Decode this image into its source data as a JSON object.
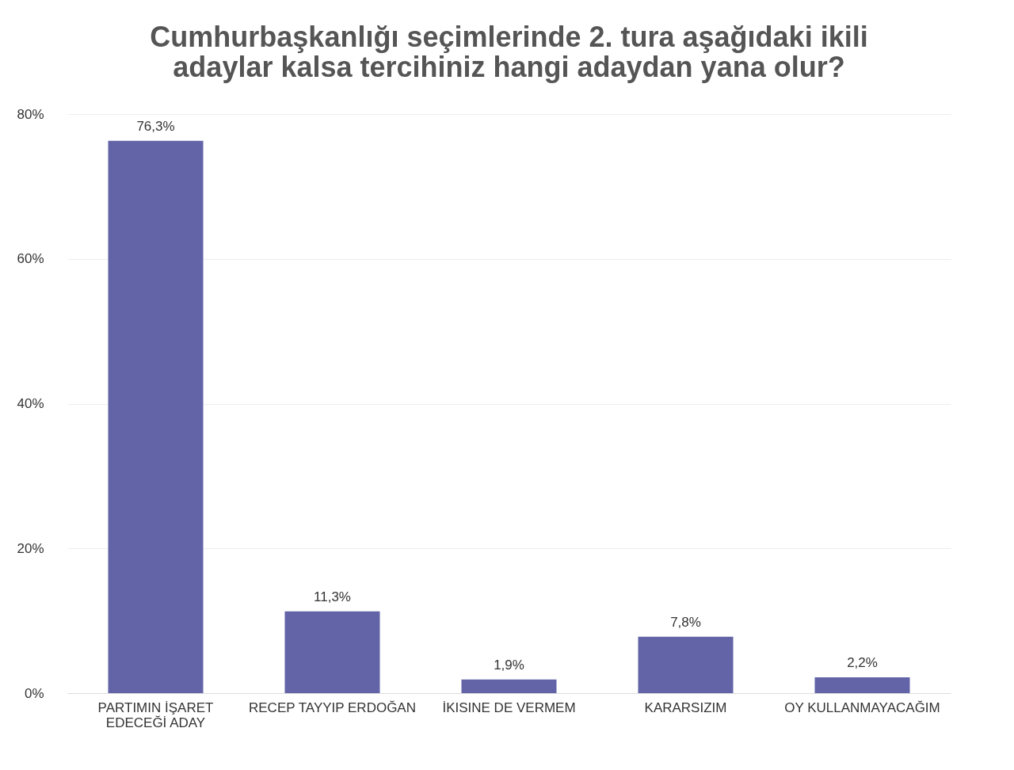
{
  "chart_data": {
    "type": "bar",
    "title": "Cumhurbaşkanlığı seçimlerinde 2. tura aşağıdaki ikili adaylar kalsa tercihiniz hangi adaydan yana olur?",
    "categories": [
      "PARTIMIN İŞARET EDECEĞİ ADAY",
      "RECEP TAYYIP ERDOĞAN",
      "İKISINE DE VERMEM",
      "KARARSIZIM",
      "OY KULLANMAYACAĞIM"
    ],
    "values": [
      76.3,
      11.3,
      1.9,
      7.8,
      2.2
    ],
    "value_labels": [
      "76,3%",
      "11,3%",
      "1,9%",
      "7,8%",
      "2,2%"
    ],
    "color": "#6264a7",
    "ylim": [
      0,
      80
    ],
    "yticks": [
      {
        "value": 0,
        "label": "0%"
      },
      {
        "value": 20,
        "label": "20%"
      },
      {
        "value": 40,
        "label": "40%"
      },
      {
        "value": 60,
        "label": "60%"
      },
      {
        "value": 80,
        "label": "80%"
      }
    ],
    "grid": "y"
  }
}
